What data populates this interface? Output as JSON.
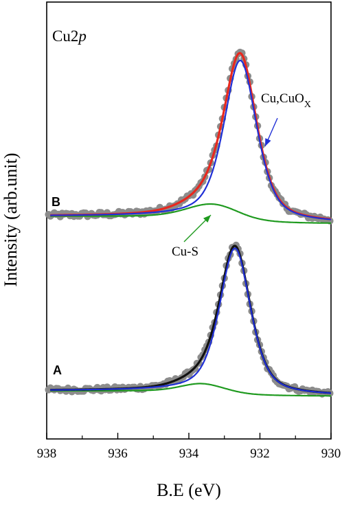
{
  "chart_data": {
    "type": "line",
    "title": "Cu2p",
    "title_parts": {
      "element": "Cu2",
      "orbital": "p"
    },
    "xlabel": "B.E (eV)",
    "ylabel": "Intensity (arb.unit)",
    "xlim": [
      938,
      930
    ],
    "x_reversed": true,
    "x_ticks": [
      938,
      936,
      934,
      932,
      930
    ],
    "y_ticks_shown": false,
    "grid": false,
    "annotations": {
      "panel_B": "B",
      "panel_A": "A",
      "cu_s": "Cu-S",
      "cu_cuox": {
        "main": "Cu,CuO",
        "sub": "X"
      }
    },
    "colors": {
      "data_points": "#8c8c8c",
      "fit_B": "#e8281e",
      "fit_A": "#111111",
      "cu_cuox_component": "#1f2fd6",
      "cu_s_component": "#1f9a1f",
      "arrow_cu_cuox": "#1f2fd6",
      "arrow_cu_s": "#1f9a1f"
    },
    "series": [
      {
        "panel": "B",
        "baseline": 0.0,
        "components": [
          {
            "role": "Cu,CuOx",
            "center": 932.55,
            "amplitude": 1.0,
            "hwhm": 0.55,
            "eta": 0.55
          },
          {
            "role": "Cu-S",
            "center": 933.35,
            "amplitude": 0.085,
            "hwhm": 0.85,
            "eta": 0.3
          }
        ],
        "background_step": 0.05
      },
      {
        "panel": "A",
        "baseline": 0.0,
        "components": [
          {
            "role": "Cu,CuOx",
            "center": 932.7,
            "amplitude": 1.0,
            "hwhm": 0.52,
            "eta": 0.55
          },
          {
            "role": "Cu-S",
            "center": 933.65,
            "amplitude": 0.055,
            "hwhm": 0.7,
            "eta": 0.3
          }
        ],
        "background_step": 0.04
      }
    ]
  }
}
